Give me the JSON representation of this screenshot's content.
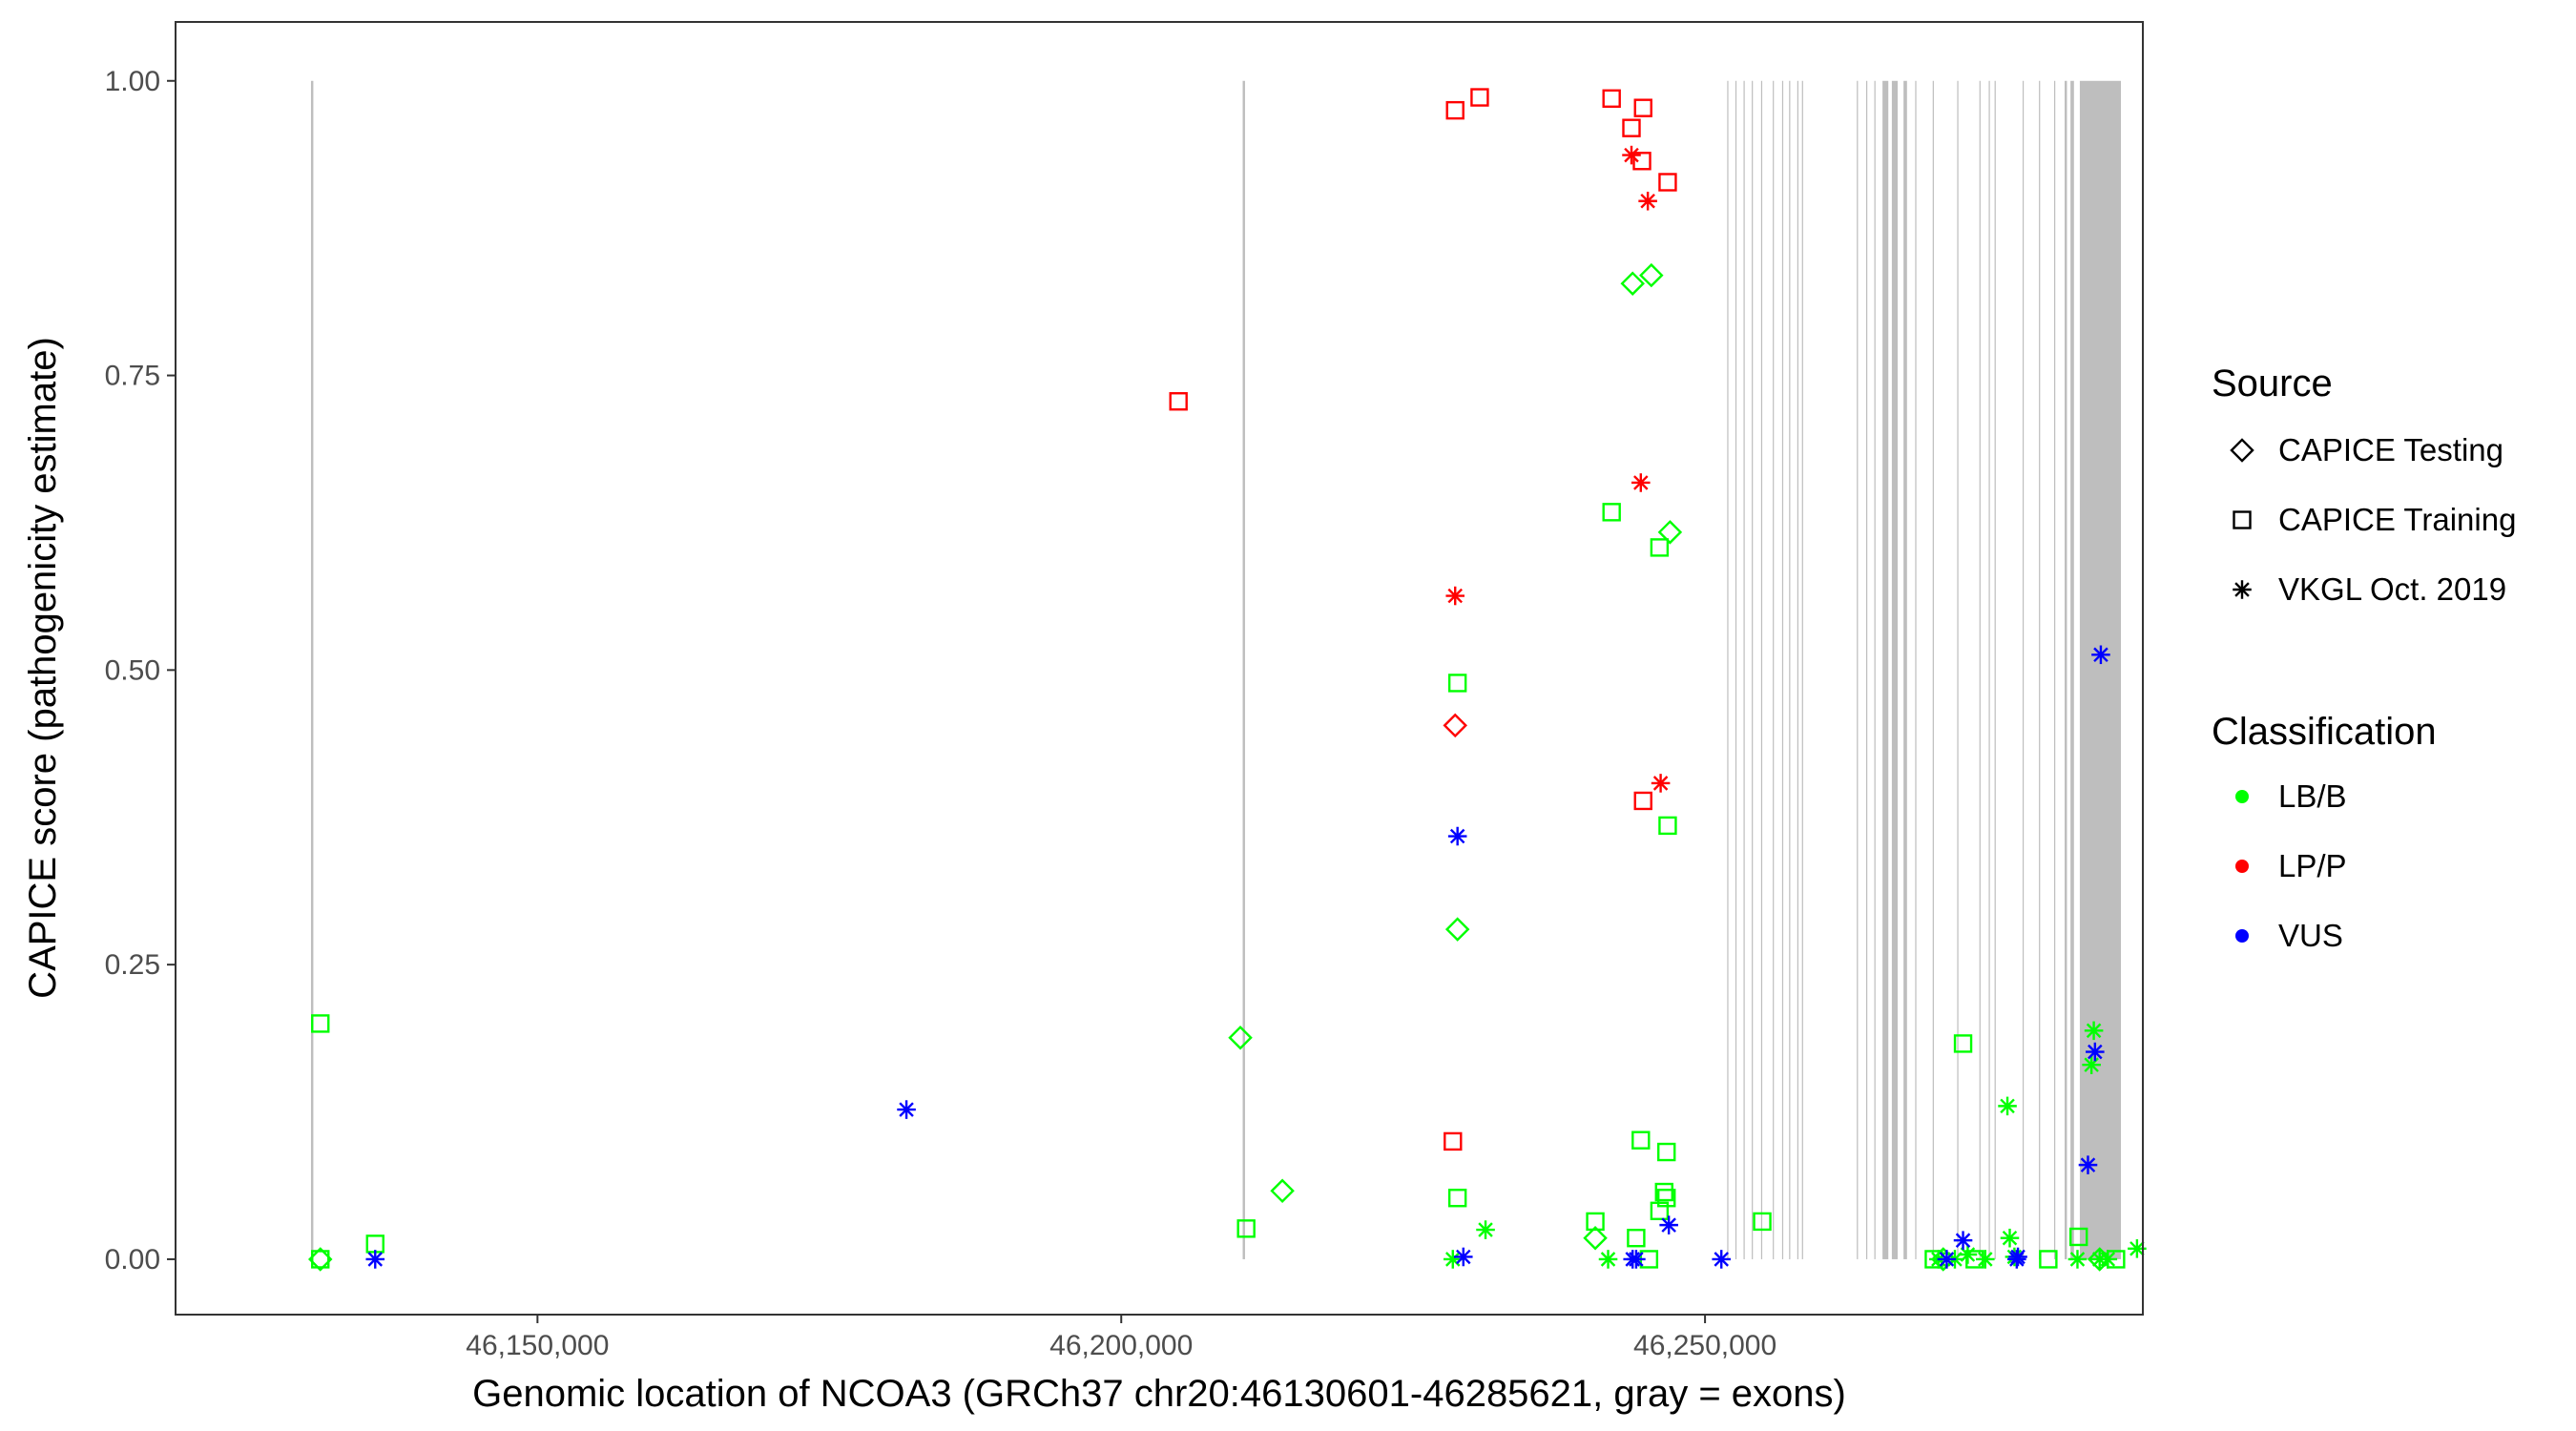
{
  "chart_data": {
    "type": "scatter",
    "xlabel": "Genomic location of NCOA3 (GRCh37 chr20:46130601-46285621, gray = exons)",
    "ylabel": "CAPICE score (pathogenicity estimate)",
    "xlim": [
      46119000,
      46287500
    ],
    "ylim": [
      -0.047,
      1.05
    ],
    "x_ticks": [
      {
        "value": 46150000,
        "label": "46,150,000"
      },
      {
        "value": 46200000,
        "label": "46,200,000"
      },
      {
        "value": 46250000,
        "label": "46,250,000"
      }
    ],
    "y_ticks": [
      {
        "value": 0.0,
        "label": "0.00"
      },
      {
        "value": 0.25,
        "label": "0.25"
      },
      {
        "value": 0.5,
        "label": "0.50"
      },
      {
        "value": 0.75,
        "label": "0.75"
      },
      {
        "value": 1.0,
        "label": "1.00"
      }
    ],
    "grid": false,
    "exon_color": "#bebebe",
    "exons": [
      [
        46130601,
        46130800
      ],
      [
        46210401,
        46210600
      ],
      [
        46251901,
        46252000
      ],
      [
        46252601,
        46252700
      ],
      [
        46253301,
        46253400
      ],
      [
        46254001,
        46254100
      ],
      [
        46254801,
        46254900
      ],
      [
        46255801,
        46255900
      ],
      [
        46256601,
        46256700
      ],
      [
        46257201,
        46257300
      ],
      [
        46257901,
        46258000
      ],
      [
        46258301,
        46258400
      ],
      [
        46263001,
        46263100
      ],
      [
        46263801,
        46263900
      ],
      [
        46264501,
        46264600
      ],
      [
        46265201,
        46265700
      ],
      [
        46266001,
        46266500
      ],
      [
        46267001,
        46267300
      ],
      [
        46268001,
        46268100
      ],
      [
        46269501,
        46269600
      ],
      [
        46271601,
        46271700
      ],
      [
        46273501,
        46273600
      ],
      [
        46274301,
        46274400
      ],
      [
        46274801,
        46274900
      ],
      [
        46277201,
        46277300
      ],
      [
        46278601,
        46278700
      ],
      [
        46279901,
        46280000
      ],
      [
        46280801,
        46281000
      ],
      [
        46281301,
        46281600
      ],
      [
        46282101,
        46285621
      ]
    ],
    "legend": {
      "source_title": "Source",
      "source_items": [
        {
          "name": "CAPICE Testing",
          "shape": "diamond"
        },
        {
          "name": "CAPICE Training",
          "shape": "square"
        },
        {
          "name": "VKGL Oct. 2019",
          "shape": "asterisk"
        }
      ],
      "classification_title": "Classification",
      "classification_items": [
        {
          "name": "LB/B",
          "color": "#00ff00"
        },
        {
          "name": "LP/P",
          "color": "#ff0000"
        },
        {
          "name": "VUS",
          "color": "#0000ff"
        }
      ]
    },
    "series": [
      {
        "source": "CAPICE Training",
        "classification": "LB/B",
        "points": [
          [
            46131400,
            0.2
          ],
          [
            46131400,
            0.0
          ],
          [
            46136100,
            0.013
          ],
          [
            46210700,
            0.026
          ],
          [
            46228800,
            0.489
          ],
          [
            46228800,
            0.052
          ],
          [
            46240600,
            0.032
          ],
          [
            46242000,
            0.634
          ],
          [
            46244500,
            0.101
          ],
          [
            46246100,
            0.604
          ],
          [
            46246800,
            0.368
          ],
          [
            46246700,
            0.091
          ],
          [
            46246100,
            0.041
          ],
          [
            46246500,
            0.057
          ],
          [
            46246700,
            0.052
          ],
          [
            46244100,
            0.018
          ],
          [
            46245200,
            0.0
          ],
          [
            46254900,
            0.032
          ],
          [
            46272100,
            0.183
          ],
          [
            46269600,
            0.0
          ],
          [
            46273100,
            0.0
          ],
          [
            46279400,
            0.0
          ],
          [
            46282000,
            0.019
          ],
          [
            46285200,
            0.0
          ]
        ]
      },
      {
        "source": "CAPICE Training",
        "classification": "LP/P",
        "points": [
          [
            46204900,
            0.728
          ],
          [
            46228600,
            0.975
          ],
          [
            46230700,
            0.986
          ],
          [
            46242000,
            0.985
          ],
          [
            46243700,
            0.96
          ],
          [
            46244700,
            0.977
          ],
          [
            46244600,
            0.932
          ],
          [
            46246800,
            0.914
          ],
          [
            46228400,
            0.1
          ],
          [
            46244700,
            0.389
          ]
        ]
      },
      {
        "source": "CAPICE Testing",
        "classification": "LB/B",
        "points": [
          [
            46131400,
            0.0
          ],
          [
            46210200,
            0.188
          ],
          [
            46213800,
            0.058
          ],
          [
            46243800,
            0.828
          ],
          [
            46245400,
            0.835
          ],
          [
            46247000,
            0.617
          ],
          [
            46228800,
            0.28
          ],
          [
            46240600,
            0.018
          ],
          [
            46270400,
            0.0
          ],
          [
            46283800,
            0.0
          ]
        ]
      },
      {
        "source": "CAPICE Testing",
        "classification": "LP/P",
        "points": [
          [
            46228600,
            0.453
          ]
        ]
      },
      {
        "source": "VKGL Oct. 2019",
        "classification": "LB/B",
        "points": [
          [
            46228400,
            0.0
          ],
          [
            46231200,
            0.025
          ],
          [
            46241700,
            0.0
          ],
          [
            46275900,
            0.13
          ],
          [
            46276100,
            0.018
          ],
          [
            46283300,
            0.194
          ],
          [
            46283100,
            0.165
          ],
          [
            46287000,
            0.009
          ],
          [
            46270000,
            0.0
          ],
          [
            46271400,
            0.0
          ],
          [
            46272500,
            0.004
          ],
          [
            46274000,
            0.0
          ],
          [
            46276500,
            0.002
          ],
          [
            46281900,
            0.0
          ],
          [
            46283800,
            0.0
          ],
          [
            46284500,
            0.0
          ]
        ]
      },
      {
        "source": "VKGL Oct. 2019",
        "classification": "LP/P",
        "points": [
          [
            46228600,
            0.563
          ],
          [
            46243700,
            0.937
          ],
          [
            46245100,
            0.898
          ],
          [
            46244500,
            0.659
          ],
          [
            46246200,
            0.404
          ]
        ]
      },
      {
        "source": "VKGL Oct. 2019",
        "classification": "VUS",
        "points": [
          [
            46136100,
            0.0
          ],
          [
            46181600,
            0.127
          ],
          [
            46228800,
            0.359
          ],
          [
            46229300,
            0.002
          ],
          [
            46243800,
            0.0
          ],
          [
            46244100,
            0.0
          ],
          [
            46246900,
            0.029
          ],
          [
            46251400,
            0.0
          ],
          [
            46272100,
            0.016
          ],
          [
            46270700,
            0.0
          ],
          [
            46276700,
            0.0
          ],
          [
            46276800,
            0.002
          ],
          [
            46282800,
            0.08
          ],
          [
            46283400,
            0.176
          ],
          [
            46283900,
            0.513
          ]
        ]
      }
    ]
  }
}
